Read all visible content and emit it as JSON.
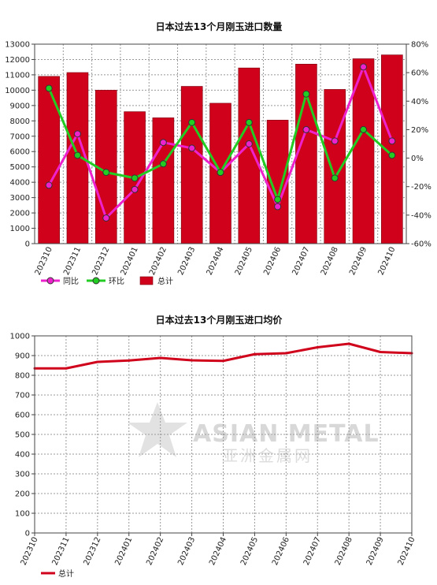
{
  "chart_data": [
    {
      "type": "bar",
      "title": "日本过去13个月刚玉进口数量",
      "categories": [
        "202310",
        "202311",
        "202312",
        "202401",
        "202402",
        "202403",
        "202404",
        "202405",
        "202406",
        "202407",
        "202408",
        "202409",
        "202410"
      ],
      "ylim": [
        0,
        13000
      ],
      "y_ticks": [
        0,
        1000,
        2000,
        3000,
        4000,
        5000,
        6000,
        7000,
        8000,
        9000,
        10000,
        11000,
        12000,
        13000
      ],
      "y2lim": [
        -60,
        80
      ],
      "y2_ticks": [
        "-60%",
        "-40%",
        "-20%",
        "0%",
        "20%",
        "40%",
        "60%",
        "80%"
      ],
      "grid": true,
      "legend_position": "bottom-left",
      "colors": {
        "bar": "#d0021b",
        "yoy": "#ee22cc",
        "mom": "#22cc22"
      },
      "series": [
        {
          "name": "总计",
          "type": "bar",
          "axis": "left",
          "values": [
            10900,
            11150,
            10000,
            8600,
            8200,
            10250,
            9150,
            11450,
            8050,
            11700,
            10050,
            12050,
            12300
          ]
        },
        {
          "name": "同比",
          "type": "line",
          "axis": "right",
          "values": [
            -19,
            17,
            -42,
            -22,
            11,
            7,
            -10,
            10,
            -34,
            20,
            12,
            64,
            12
          ]
        },
        {
          "name": "环比",
          "type": "line",
          "axis": "right",
          "values": [
            49,
            2,
            -10,
            -14,
            -4,
            25,
            -10,
            25,
            -29,
            45,
            -14,
            20,
            2
          ]
        }
      ]
    },
    {
      "type": "line",
      "title": "日本过去13个月刚玉进口均价",
      "categories": [
        "202310",
        "202311",
        "202312",
        "202401",
        "202402",
        "202403",
        "202404",
        "202405",
        "202406",
        "202407",
        "202408",
        "202409",
        "202410"
      ],
      "ylim": [
        0,
        1000
      ],
      "y_ticks": [
        0,
        100,
        200,
        300,
        400,
        500,
        600,
        700,
        800,
        900,
        1000
      ],
      "grid": true,
      "legend_position": "bottom-left",
      "colors": {
        "line": "#d0021b"
      },
      "series": [
        {
          "name": "总计",
          "values": [
            835,
            835,
            868,
            875,
            888,
            876,
            873,
            907,
            912,
            942,
            960,
            918,
            912
          ]
        }
      ]
    }
  ],
  "watermark": {
    "en": "ASIAN METAL",
    "cn": "亚洲金属网"
  }
}
